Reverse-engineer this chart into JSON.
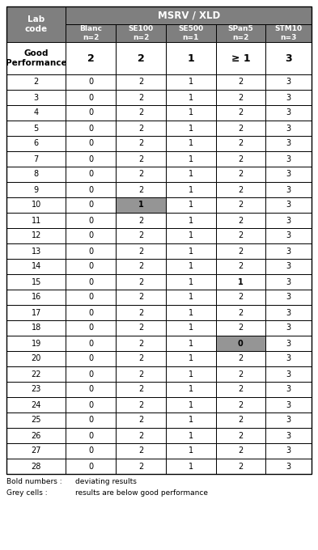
{
  "col_headers": [
    "Blanc\nn=2",
    "SE100\nn=2",
    "SE500\nn=1",
    "SPan5\nn=2",
    "STM10\nn=3"
  ],
  "good_perf_values": [
    "2",
    "2",
    "1",
    "≥ 1",
    "3"
  ],
  "lab_codes": [
    2,
    3,
    4,
    5,
    6,
    7,
    8,
    9,
    10,
    11,
    12,
    13,
    14,
    15,
    16,
    17,
    18,
    19,
    20,
    22,
    23,
    24,
    25,
    26,
    27,
    28
  ],
  "data": {
    "2": [
      0,
      2,
      1,
      2,
      3
    ],
    "3": [
      0,
      2,
      1,
      2,
      3
    ],
    "4": [
      0,
      2,
      1,
      2,
      3
    ],
    "5": [
      0,
      2,
      1,
      2,
      3
    ],
    "6": [
      0,
      2,
      1,
      2,
      3
    ],
    "7": [
      0,
      2,
      1,
      2,
      3
    ],
    "8": [
      0,
      2,
      1,
      2,
      3
    ],
    "9": [
      0,
      2,
      1,
      2,
      3
    ],
    "10": [
      0,
      1,
      1,
      2,
      3
    ],
    "11": [
      0,
      2,
      1,
      2,
      3
    ],
    "12": [
      0,
      2,
      1,
      2,
      3
    ],
    "13": [
      0,
      2,
      1,
      2,
      3
    ],
    "14": [
      0,
      2,
      1,
      2,
      3
    ],
    "15": [
      0,
      2,
      1,
      1,
      3
    ],
    "16": [
      0,
      2,
      1,
      2,
      3
    ],
    "17": [
      0,
      2,
      1,
      2,
      3
    ],
    "18": [
      0,
      2,
      1,
      2,
      3
    ],
    "19": [
      0,
      2,
      1,
      0,
      3
    ],
    "20": [
      0,
      2,
      1,
      2,
      3
    ],
    "22": [
      0,
      2,
      1,
      2,
      3
    ],
    "23": [
      0,
      2,
      1,
      2,
      3
    ],
    "24": [
      0,
      2,
      1,
      2,
      3
    ],
    "25": [
      0,
      2,
      1,
      2,
      3
    ],
    "26": [
      0,
      2,
      1,
      2,
      3
    ],
    "27": [
      0,
      2,
      1,
      2,
      3
    ],
    "28": [
      0,
      2,
      1,
      2,
      3
    ]
  },
  "grey_cells": {
    "10": [
      1
    ],
    "19": [
      3
    ]
  },
  "bold_cells": {
    "10": [
      1
    ],
    "15": [
      3
    ],
    "19": [
      3
    ]
  },
  "header_bg": "#7f7f7f",
  "header_text": "#ffffff",
  "grey_cell_bg": "#959595",
  "border_color": "#000000",
  "note1_left": "Bold numbers :",
  "note1_right": "deviating results",
  "note2_left": "Grey cells :",
  "note2_right": "results are below good performance"
}
